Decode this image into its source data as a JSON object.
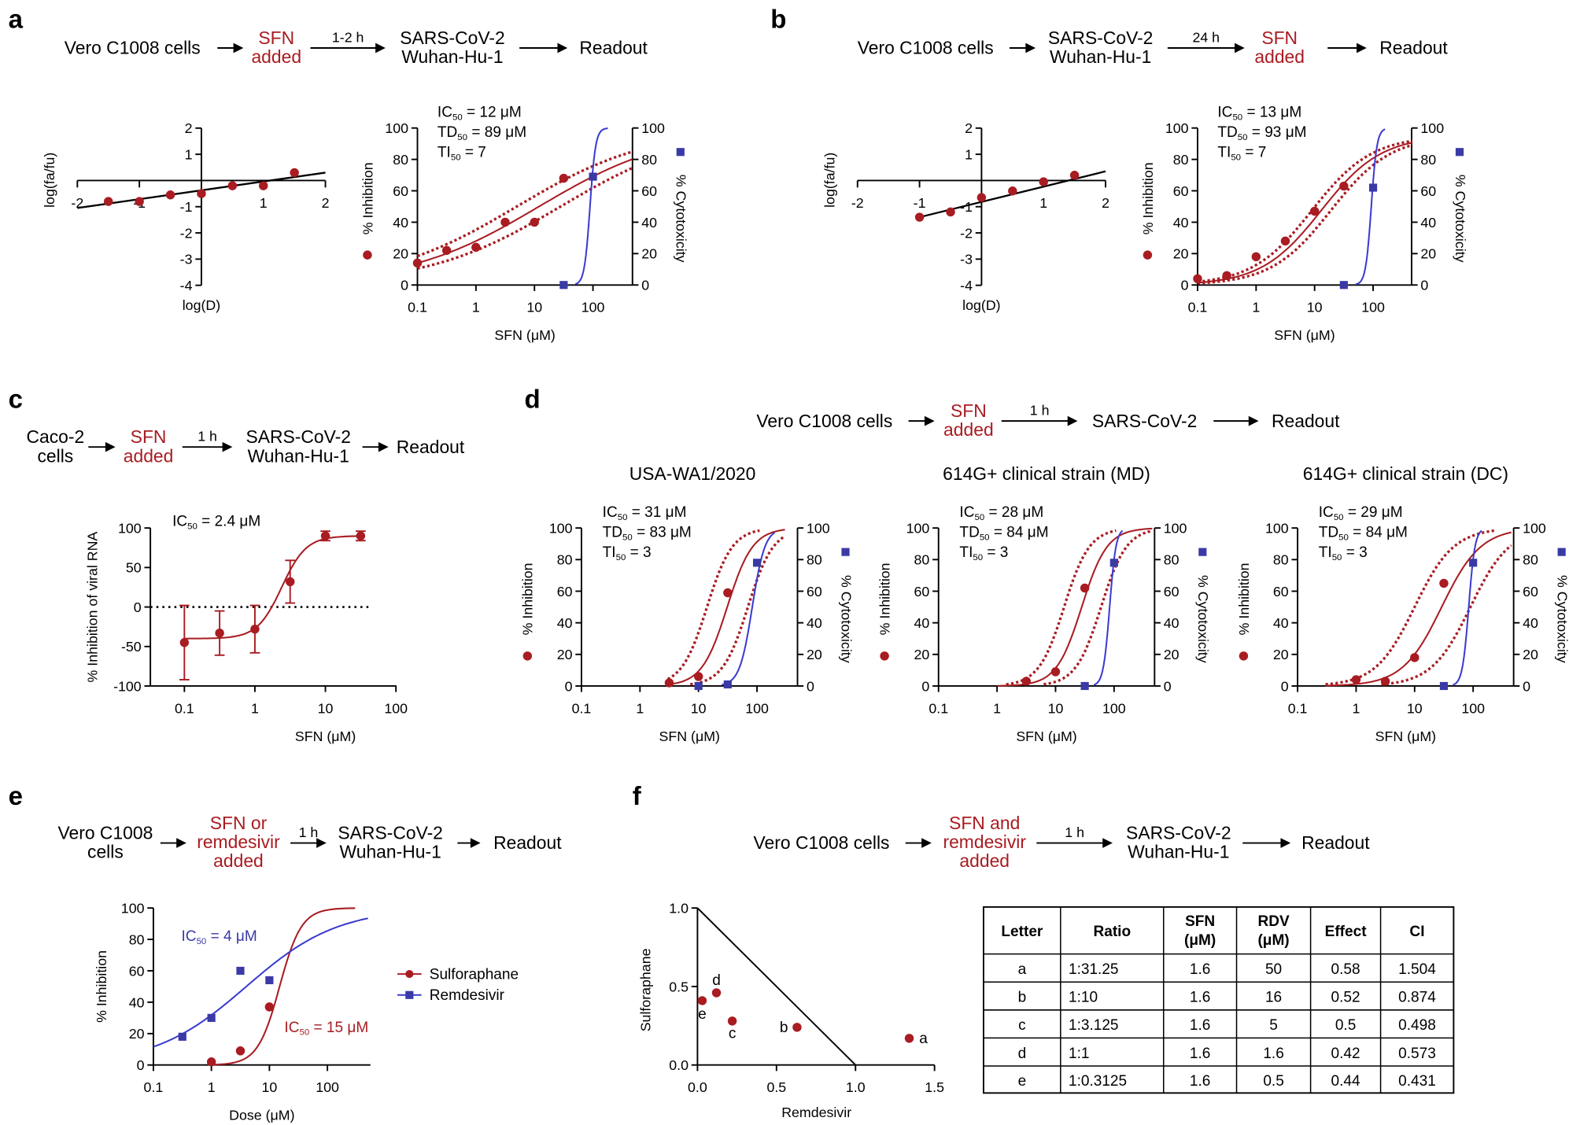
{
  "colors": {
    "sfn": "#a81c22",
    "cytotoxicity": "#3a3aa6",
    "cytotoxicity_line": "#3b3bd0",
    "text": "#000000"
  },
  "panel_labels": [
    "a",
    "b",
    "c",
    "d",
    "e",
    "f"
  ],
  "workflows": [
    {
      "nodes": [
        {
          "lines": [
            "Vero C1008 cells"
          ]
        },
        {
          "lines": [
            "SFN",
            "added"
          ],
          "highlight": true
        },
        {
          "lines": [
            "SARS-CoV-2",
            "Wuhan-Hu-1"
          ]
        },
        {
          "lines": [
            "Readout"
          ]
        }
      ],
      "arrows": [
        "",
        "1-2 h",
        ""
      ]
    },
    {
      "nodes": [
        {
          "lines": [
            "Vero C1008 cells"
          ]
        },
        {
          "lines": [
            "SARS-CoV-2",
            "Wuhan-Hu-1"
          ]
        },
        {
          "lines": [
            "SFN",
            "added"
          ],
          "highlight": true
        },
        {
          "lines": [
            "Readout"
          ]
        }
      ],
      "arrows": [
        "",
        "24 h",
        ""
      ]
    },
    {
      "nodes": [
        {
          "lines": [
            "Caco-2",
            "cells"
          ]
        },
        {
          "lines": [
            "SFN",
            "added"
          ],
          "highlight": true
        },
        {
          "lines": [
            "SARS-CoV-2",
            "Wuhan-Hu-1"
          ]
        },
        {
          "lines": [
            "Readout"
          ]
        }
      ],
      "arrows": [
        "",
        "1 h",
        ""
      ]
    },
    {
      "nodes": [
        {
          "lines": [
            "Vero C1008 cells"
          ]
        },
        {
          "lines": [
            "SFN",
            "added"
          ],
          "highlight": true
        },
        {
          "lines": [
            "SARS-CoV-2"
          ]
        },
        {
          "lines": [
            "Readout"
          ]
        }
      ],
      "arrows": [
        "",
        "1 h",
        ""
      ]
    },
    {
      "nodes": [
        {
          "lines": [
            "Vero C1008",
            "cells"
          ]
        },
        {
          "lines": [
            "SFN or",
            "remdesivir",
            "added"
          ],
          "highlight": true
        },
        {
          "lines": [
            "SARS-CoV-2",
            "Wuhan-Hu-1"
          ]
        },
        {
          "lines": [
            "Readout"
          ]
        }
      ],
      "arrows": [
        "",
        "1 h",
        ""
      ]
    },
    {
      "nodes": [
        {
          "lines": [
            "Vero C1008 cells"
          ]
        },
        {
          "lines": [
            "SFN and",
            "remdesivir",
            "added"
          ],
          "highlight": true
        },
        {
          "lines": [
            "SARS-CoV-2",
            "Wuhan-Hu-1"
          ]
        },
        {
          "lines": [
            "Readout"
          ]
        }
      ],
      "arrows": [
        "",
        "1 h",
        ""
      ]
    }
  ],
  "strain_titles": [
    "USA-WA1/2020",
    "614G+ clinical strain (MD)",
    "614G+ clinical strain (DC)"
  ],
  "chart_data": [
    {
      "id": "a-median-effect",
      "type": "scatter",
      "xlabel": "log(D)",
      "ylabel": "log(fa/fu)",
      "xlim": [
        -2,
        2
      ],
      "ylim": [
        -4,
        2
      ],
      "xticks": [
        "-2",
        "-1",
        "1",
        "2"
      ],
      "yticks": [
        "2",
        "1",
        "-1",
        "-2",
        "-3",
        "-4"
      ],
      "points": {
        "x": [
          -1.5,
          -1,
          -0.5,
          0,
          0.5,
          1,
          1.5
        ],
        "y": [
          -0.8,
          -0.8,
          -0.55,
          -0.5,
          -0.2,
          -0.2,
          0.3
        ]
      },
      "fit_line": {
        "x": [
          -2,
          2
        ],
        "y": [
          -1.05,
          0.3
        ]
      }
    },
    {
      "id": "a-dose-response",
      "type": "line+scatter",
      "xscale": "log",
      "xlabel": "SFN (μM)",
      "ylabel": "% Inhibition",
      "y2label": "% Cytotoxicity",
      "xlim": [
        0.1,
        470
      ],
      "ylim": [
        0,
        100
      ],
      "xticks": [
        "0.1",
        "1",
        "10",
        "100"
      ],
      "yticks": [
        0,
        20,
        40,
        60,
        80,
        100
      ],
      "y2ticks": [
        0,
        20,
        40,
        60,
        80,
        100
      ],
      "annotations": [
        {
          "label": "IC",
          "sub": "50",
          "value": " = 12 μM"
        },
        {
          "label": "TD",
          "sub": "50",
          "value": " = 89 μM"
        },
        {
          "label": "TI",
          "sub": "50",
          "value": " = 7"
        }
      ],
      "series": [
        {
          "color": "#a81c22",
          "marker": "circle",
          "x": [
            0.1,
            0.316,
            1,
            3.16,
            10,
            31.6
          ],
          "y": [
            14,
            22,
            24,
            40,
            40,
            68
          ],
          "fit": {
            "ic50": 12,
            "hill": 0.38,
            "bottom": 0,
            "top": 100,
            "range": [
              0.1,
              470
            ],
            "band_ic50": [
              5,
              28
            ]
          }
        },
        {
          "color": "#3a3aa6",
          "line_color": "#3b3bd0",
          "marker": "square",
          "axis": "right",
          "x": [
            31.6,
            100
          ],
          "y": [
            0,
            69
          ],
          "fit": {
            "ic50": 89,
            "hill": 9,
            "bottom": 0,
            "top": 100,
            "range": [
              50,
              180
            ]
          }
        }
      ]
    },
    {
      "id": "b-median-effect",
      "type": "scatter",
      "xlabel": "log(D)",
      "ylabel": "log(fa/fu)",
      "xlim": [
        -2,
        2
      ],
      "ylim": [
        -4,
        2
      ],
      "xticks": [
        "-2",
        "-1",
        "1",
        "2"
      ],
      "yticks": [
        "2",
        "1",
        "-1",
        "-2",
        "-3",
        "-4"
      ],
      "points": {
        "x": [
          -1,
          -0.5,
          0,
          0.5,
          1,
          1.5
        ],
        "y": [
          -1.4,
          -1.2,
          -0.65,
          -0.4,
          -0.05,
          0.2
        ]
      },
      "fit_line": {
        "x": [
          -1,
          2
        ],
        "y": [
          -1.4,
          0.35
        ]
      }
    },
    {
      "id": "b-dose-response",
      "type": "line+scatter",
      "xscale": "log",
      "xlabel": "SFN (μM)",
      "ylabel": "% Inhibition",
      "y2label": "% Cytotoxicity",
      "xlim": [
        0.1,
        470
      ],
      "ylim": [
        0,
        100
      ],
      "xticks": [
        "0.1",
        "1",
        "10",
        "100"
      ],
      "yticks": [
        0,
        20,
        40,
        60,
        80,
        100
      ],
      "y2ticks": [
        0,
        20,
        40,
        60,
        80,
        100
      ],
      "annotations": [
        {
          "label": "IC",
          "sub": "50",
          "value": " = 13 μM"
        },
        {
          "label": "TD",
          "sub": "50",
          "value": " = 93 μM"
        },
        {
          "label": "TI",
          "sub": "50",
          "value": " = 7"
        }
      ],
      "series": [
        {
          "color": "#a81c22",
          "marker": "circle",
          "x": [
            0.1,
            0.316,
            1,
            3.16,
            10,
            31.6
          ],
          "y": [
            4,
            6,
            18,
            28,
            47,
            63
          ],
          "fit": {
            "ic50": 13,
            "hill": 0.85,
            "bottom": 0,
            "top": 95,
            "range": [
              0.1,
              470
            ],
            "band_ic50": [
              9,
              19
            ]
          }
        },
        {
          "color": "#3a3aa6",
          "line_color": "#3b3bd0",
          "marker": "square",
          "axis": "right",
          "x": [
            31.6,
            100
          ],
          "y": [
            0,
            62
          ],
          "fit": {
            "ic50": 93,
            "hill": 9,
            "bottom": 0,
            "top": 100,
            "range": [
              50,
              160
            ]
          }
        }
      ]
    },
    {
      "id": "c-dose-response",
      "type": "line+scatter",
      "xscale": "log",
      "xlabel": "SFN (μM)",
      "ylabel": "% Inhibition of viral RNA",
      "xlim": [
        0.033,
        100
      ],
      "ylim": [
        -100,
        100
      ],
      "xticks": [
        "0.1",
        "1",
        "10",
        "100"
      ],
      "yticks": [
        100,
        50,
        0,
        -50,
        -100
      ],
      "reference_line": 0,
      "annotations": [
        {
          "label": "IC",
          "sub": "50",
          "value": " = 2.4 μM"
        }
      ],
      "series": [
        {
          "color": "#a81c22",
          "marker": "circle",
          "x": [
            0.1,
            0.316,
            1,
            3.16,
            10,
            31.6
          ],
          "y": [
            -45,
            -33,
            -28,
            32,
            90,
            90
          ],
          "err": [
            47,
            28,
            30,
            27,
            6,
            6
          ],
          "fit": {
            "ic50": 2.4,
            "hill": 2.5,
            "bottom": -40,
            "top": 90,
            "range": [
              0.1,
              31.6
            ]
          }
        }
      ]
    },
    {
      "id": "d-usa-wa1",
      "type": "line+scatter",
      "xscale": "log",
      "xlabel": "SFN (μM)",
      "ylabel": "% Inhibition",
      "y2label": "% Cytotoxicity",
      "xlim": [
        0.1,
        470
      ],
      "ylim": [
        0,
        100
      ],
      "xticks": [
        "0.1",
        "1",
        "10",
        "100"
      ],
      "yticks": [
        0,
        20,
        40,
        60,
        80,
        100
      ],
      "y2ticks": [
        0,
        20,
        40,
        60,
        80,
        100
      ],
      "annotations": [
        {
          "label": "IC",
          "sub": "50",
          "value": " = 31 μM"
        },
        {
          "label": "TD",
          "sub": "50",
          "value": " = 83 μM"
        },
        {
          "label": "TI",
          "sub": "50",
          "value": " = 3"
        }
      ],
      "series": [
        {
          "color": "#a81c22",
          "marker": "circle",
          "x": [
            3.16,
            10,
            31.6
          ],
          "y": [
            2,
            6,
            59
          ],
          "fit": {
            "ic50": 31,
            "hill": 2,
            "bottom": 0,
            "top": 100,
            "range": [
              3,
              300
            ],
            "band_ic50": [
              14,
              70
            ]
          }
        },
        {
          "color": "#3a3aa6",
          "line_color": "#3b3bd0",
          "marker": "square",
          "axis": "right",
          "x": [
            10,
            31.6,
            100
          ],
          "y": [
            0,
            1,
            78
          ],
          "fit": {
            "ic50": 83,
            "hill": 4,
            "bottom": 0,
            "top": 100,
            "range": [
              25,
              200
            ]
          }
        }
      ]
    },
    {
      "id": "d-614g-md",
      "type": "line+scatter",
      "xscale": "log",
      "xlabel": "SFN (μM)",
      "ylabel": "% Inhibition",
      "y2label": "% Cytotoxicity",
      "xlim": [
        0.1,
        470
      ],
      "ylim": [
        0,
        100
      ],
      "xticks": [
        "0.1",
        "1",
        "10",
        "100"
      ],
      "yticks": [
        0,
        20,
        40,
        60,
        80,
        100
      ],
      "y2ticks": [
        0,
        20,
        40,
        60,
        80,
        100
      ],
      "annotations": [
        {
          "label": "IC",
          "sub": "50",
          "value": " = 28 μM"
        },
        {
          "label": "TD",
          "sub": "50",
          "value": " = 84 μM"
        },
        {
          "label": "TI",
          "sub": "50",
          "value": " = 3"
        }
      ],
      "series": [
        {
          "color": "#a81c22",
          "marker": "circle",
          "x": [
            3.16,
            10,
            31.6
          ],
          "y": [
            3,
            9,
            62
          ],
          "fit": {
            "ic50": 28,
            "hill": 2,
            "bottom": 0,
            "top": 100,
            "range": [
              1,
              450
            ],
            "band_ic50": [
              14,
              60
            ]
          }
        },
        {
          "color": "#3a3aa6",
          "line_color": "#3b3bd0",
          "marker": "square",
          "axis": "right",
          "x": [
            31.6,
            100
          ],
          "y": [
            0,
            78
          ],
          "fit": {
            "ic50": 84,
            "hill": 8,
            "bottom": 0,
            "top": 100,
            "range": [
              45,
              140
            ]
          }
        }
      ]
    },
    {
      "id": "d-614g-dc",
      "type": "line+scatter",
      "xscale": "log",
      "xlabel": "SFN (μM)",
      "ylabel": "% Inhibition",
      "y2label": "% Cytotoxicity",
      "xlim": [
        0.1,
        470
      ],
      "ylim": [
        0,
        100
      ],
      "xticks": [
        "0.1",
        "1",
        "10",
        "100"
      ],
      "yticks": [
        0,
        20,
        40,
        60,
        80,
        100
      ],
      "y2ticks": [
        0,
        20,
        40,
        60,
        80,
        100
      ],
      "annotations": [
        {
          "label": "IC",
          "sub": "50",
          "value": " = 29 μM"
        },
        {
          "label": "TD",
          "sub": "50",
          "value": " = 84 μM"
        },
        {
          "label": "TI",
          "sub": "50",
          "value": " = 3"
        }
      ],
      "series": [
        {
          "color": "#a81c22",
          "marker": "circle",
          "x": [
            1,
            3.16,
            10,
            31.6
          ],
          "y": [
            4,
            3,
            18,
            65
          ],
          "fit": {
            "ic50": 29,
            "hill": 1.3,
            "bottom": 0,
            "top": 100,
            "range": [
              0.3,
              450
            ],
            "band_ic50": [
              10,
              90
            ]
          }
        },
        {
          "color": "#3a3aa6",
          "line_color": "#3b3bd0",
          "marker": "square",
          "axis": "right",
          "x": [
            31.6,
            100
          ],
          "y": [
            0,
            78
          ],
          "fit": {
            "ic50": 84,
            "hill": 8,
            "bottom": 0,
            "top": 100,
            "range": [
              45,
              140
            ]
          }
        }
      ]
    },
    {
      "id": "e-sfn-vs-remdesivir",
      "type": "line+scatter",
      "xscale": "log",
      "xlabel": "Dose (μM)",
      "ylabel": "% Inhibition",
      "xlim": [
        0.1,
        500
      ],
      "ylim": [
        0,
        100
      ],
      "xticks": [
        "0.1",
        "1",
        "10",
        "100"
      ],
      "yticks": [
        0,
        20,
        40,
        60,
        80,
        100
      ],
      "legend_position": "right",
      "annotations": [
        {
          "label": "IC",
          "sub": "50",
          "value": " = 4 μM",
          "color": "#3a3aa6"
        },
        {
          "label": "IC",
          "sub": "50",
          "value": " = 15 μM",
          "color": "#a81c22"
        }
      ],
      "series": [
        {
          "name": "Sulforaphane",
          "color": "#a81c22",
          "marker": "circle",
          "x": [
            1,
            3.16,
            10
          ],
          "y": [
            2,
            9,
            37
          ],
          "fit": {
            "ic50": 15,
            "hill": 2.3,
            "bottom": 0,
            "top": 100,
            "range": [
              1,
              300
            ]
          }
        },
        {
          "name": "Remdesivir",
          "color": "#3a3aa6",
          "line_color": "#3b3bd0",
          "marker": "square",
          "x": [
            0.316,
            1,
            3.16,
            10
          ],
          "y": [
            18,
            30,
            60,
            54
          ],
          "fit": {
            "ic50": 4,
            "hill": 0.55,
            "bottom": 0,
            "top": 100,
            "range": [
              0.1,
              500
            ]
          }
        }
      ]
    },
    {
      "id": "f-isobologram",
      "type": "scatter",
      "xlabel": "Remdesivir",
      "ylabel": "Sulforaphane",
      "xlim": [
        0,
        1.5
      ],
      "ylim": [
        0,
        1
      ],
      "xticks": [
        "0.0",
        "0.5",
        "1.0",
        "1.5"
      ],
      "yticks": [
        "0.0",
        "0.5",
        "1.0"
      ],
      "additivity_line": {
        "x": [
          0,
          1
        ],
        "y": [
          1,
          0
        ]
      },
      "points": [
        {
          "label": "a",
          "x": 1.34,
          "y": 0.17
        },
        {
          "label": "b",
          "x": 0.63,
          "y": 0.24
        },
        {
          "label": "c",
          "x": 0.22,
          "y": 0.28
        },
        {
          "label": "d",
          "x": 0.12,
          "y": 0.46
        },
        {
          "label": "e",
          "x": 0.03,
          "y": 0.41
        }
      ]
    },
    {
      "id": "f-combination-table",
      "type": "table",
      "headers": [
        [
          "Letter"
        ],
        [
          "Ratio"
        ],
        [
          "SFN",
          "(μM)"
        ],
        [
          "RDV",
          "(μM)"
        ],
        [
          "Effect"
        ],
        [
          "CI"
        ]
      ],
      "rows": [
        [
          "a",
          "1:31.25",
          "1.6",
          "50",
          "0.58",
          "1.504"
        ],
        [
          "b",
          "1:10",
          "1.6",
          "16",
          "0.52",
          "0.874"
        ],
        [
          "c",
          "1:3.125",
          "1.6",
          "5",
          "0.5",
          "0.498"
        ],
        [
          "d",
          "1:1",
          "1.6",
          "1.6",
          "0.42",
          "0.573"
        ],
        [
          "e",
          "1:0.3125",
          "1.6",
          "0.5",
          "0.44",
          "0.431"
        ]
      ]
    }
  ]
}
